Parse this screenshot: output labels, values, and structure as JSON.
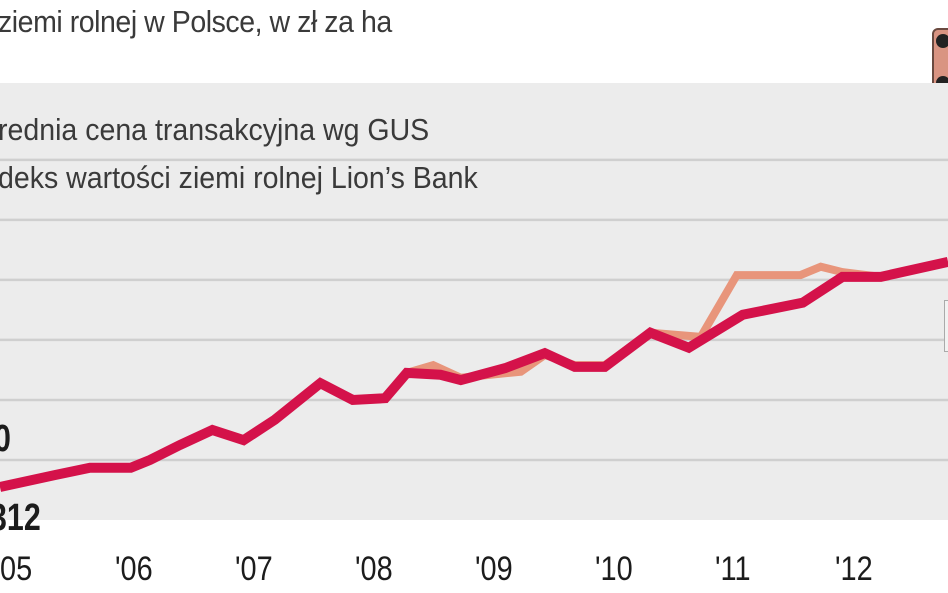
{
  "title": "ziemi rolnej w Polsce, w zł za ha",
  "chart_data": {
    "type": "line",
    "title": "ziemi rolnej w Polsce, w zł za ha",
    "x_tick_labels": [
      "05",
      "'06",
      "'07",
      "'08",
      "'09",
      "'10",
      "'11",
      "'12"
    ],
    "x_ticks": [
      2005,
      2006,
      2007,
      2008,
      2009,
      2010,
      2011,
      2012
    ],
    "xlim": [
      2004.79,
      2012.69
    ],
    "ylim": [
      0,
      7.28
    ],
    "y_gridlines": [
      1,
      2,
      3,
      4,
      5,
      6
    ],
    "grid": true,
    "legend_placement": "top-left",
    "annotations": [
      "0",
      "312"
    ],
    "series": [
      {
        "name": "rednia cena transakcyjna wg GUS",
        "color": "#e8957b",
        "x": [
          2004.79,
          2005.25,
          2005.54,
          2005.88,
          2006.04,
          2006.29,
          2006.56,
          2006.82,
          2007.08,
          2007.46,
          2007.73,
          2008.0,
          2008.18,
          2008.4,
          2008.63,
          2009.13,
          2009.33,
          2009.58,
          2009.83,
          2010.21,
          2010.63,
          2010.93,
          2011.46,
          2011.63,
          2011.81,
          2012.13,
          2012.69
        ],
        "y": [
          0.55,
          0.75,
          0.87,
          0.87,
          1.0,
          1.25,
          1.5,
          1.33,
          1.67,
          2.28,
          2.0,
          2.03,
          2.45,
          2.58,
          2.37,
          2.47,
          2.75,
          2.58,
          2.58,
          3.12,
          3.05,
          4.08,
          4.08,
          4.22,
          4.13,
          4.05,
          4.3
        ]
      },
      {
        "name": "deks wartości ziemi rolnej Lion’s Bank",
        "color": "#d4124a",
        "x": [
          2004.79,
          2005.25,
          2005.54,
          2005.88,
          2006.04,
          2006.29,
          2006.56,
          2006.82,
          2007.08,
          2007.46,
          2007.73,
          2008.0,
          2008.18,
          2008.46,
          2008.63,
          2009.0,
          2009.33,
          2009.58,
          2009.83,
          2010.21,
          2010.53,
          2010.98,
          2011.48,
          2011.81,
          2012.13,
          2012.69
        ],
        "y": [
          0.55,
          0.75,
          0.87,
          0.87,
          1.0,
          1.25,
          1.5,
          1.33,
          1.67,
          2.28,
          2.0,
          2.03,
          2.45,
          2.42,
          2.33,
          2.53,
          2.78,
          2.55,
          2.55,
          3.12,
          2.87,
          3.42,
          3.62,
          4.05,
          4.05,
          4.3
        ]
      }
    ]
  },
  "colors": {
    "background": "#ececec",
    "gridline": "#cfcfcf",
    "badge": "#d99482"
  }
}
